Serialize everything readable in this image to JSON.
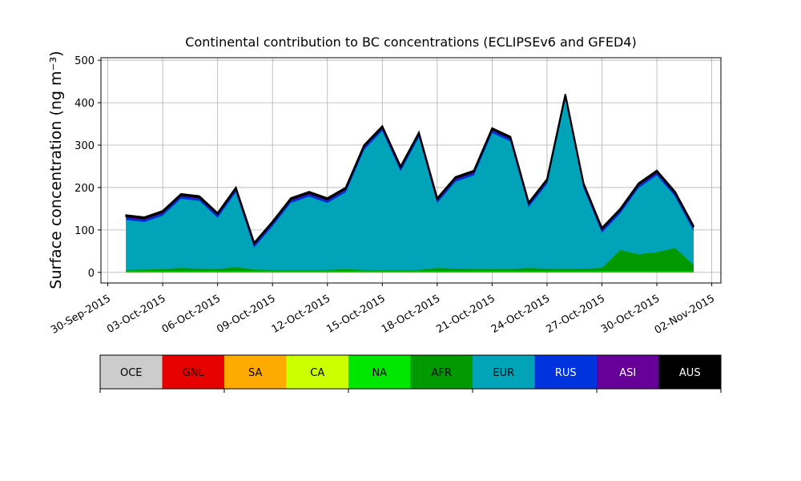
{
  "chart_data": {
    "type": "stacked-area",
    "title": "Continental contribution to BC concentrations (ECLIPSEv6 and GFED4)",
    "y_label": "Surface concentration (ng m⁻³)",
    "x": [
      "2015-10-01",
      "2015-10-02",
      "2015-10-03",
      "2015-10-04",
      "2015-10-05",
      "2015-10-06",
      "2015-10-07",
      "2015-10-08",
      "2015-10-09",
      "2015-10-10",
      "2015-10-11",
      "2015-10-12",
      "2015-10-13",
      "2015-10-14",
      "2015-10-15",
      "2015-10-16",
      "2015-10-17",
      "2015-10-18",
      "2015-10-19",
      "2015-10-20",
      "2015-10-21",
      "2015-10-22",
      "2015-10-23",
      "2015-10-24",
      "2015-10-25",
      "2015-10-26",
      "2015-10-27",
      "2015-10-28",
      "2015-10-29",
      "2015-10-30",
      "2015-10-31",
      "2015-11-01"
    ],
    "series": [
      {
        "name": "OCE",
        "color": "#cccccc",
        "values": [
          0,
          0,
          0,
          0,
          0,
          0,
          0,
          0,
          0,
          0,
          0,
          0,
          0,
          0,
          0,
          0,
          0,
          0,
          0,
          0,
          0,
          0,
          0,
          0,
          0,
          0,
          0,
          0,
          0,
          0,
          0,
          0
        ]
      },
      {
        "name": "GNL",
        "color": "#e60000",
        "values": [
          0,
          0,
          0,
          0,
          0,
          0,
          0,
          0,
          0,
          0,
          0,
          0,
          0,
          0,
          0,
          0,
          0,
          0,
          0,
          0,
          0,
          0,
          0,
          0,
          0,
          0,
          0,
          0,
          0,
          0,
          0,
          0
        ]
      },
      {
        "name": "SA",
        "color": "#ffaa00",
        "values": [
          0,
          0,
          0,
          0,
          0,
          0,
          0,
          0,
          0,
          0,
          0,
          0,
          0,
          0,
          0,
          0,
          0,
          0,
          0,
          0,
          0,
          0,
          0,
          0,
          0,
          0,
          0,
          0,
          0,
          0,
          0,
          0
        ]
      },
      {
        "name": "CA",
        "color": "#ccff00",
        "values": [
          0,
          0,
          0,
          0,
          0,
          0,
          0,
          0,
          0,
          0,
          0,
          0,
          0,
          0,
          0,
          0,
          0,
          0,
          0,
          0,
          0,
          0,
          0,
          0,
          0,
          0,
          0,
          0,
          0,
          0,
          0,
          0
        ]
      },
      {
        "name": "NA",
        "color": "#00e600",
        "values": [
          3,
          3,
          3,
          3,
          3,
          3,
          3,
          3,
          3,
          3,
          3,
          3,
          3,
          3,
          3,
          3,
          3,
          3,
          3,
          3,
          3,
          3,
          3,
          3,
          3,
          3,
          3,
          3,
          3,
          3,
          3,
          3
        ]
      },
      {
        "name": "AFR",
        "color": "#009900",
        "values": [
          3,
          4,
          5,
          8,
          6,
          5,
          10,
          4,
          3,
          3,
          3,
          3,
          5,
          3,
          3,
          3,
          3,
          8,
          6,
          5,
          5,
          5,
          8,
          6,
          5,
          6,
          8,
          50,
          40,
          45,
          55,
          15
        ]
      },
      {
        "name": "EUR",
        "color": "#00a3b8",
        "values": [
          118,
          112,
          126,
          163,
          160,
          121,
          176,
          52,
          103,
          158,
          173,
          158,
          181,
          283,
          328,
          233,
          313,
          153,
          205,
          221,
          321,
          301,
          143,
          200,
          401,
          190,
          83,
          86,
          156,
          181,
          121,
          81
        ]
      },
      {
        "name": "RUS",
        "color": "#0033dd",
        "values": [
          5,
          5,
          5,
          5,
          5,
          5,
          5,
          5,
          5,
          5,
          5,
          5,
          5,
          5,
          5,
          5,
          5,
          5,
          5,
          5,
          5,
          5,
          5,
          5,
          5,
          5,
          5,
          5,
          5,
          5,
          5,
          5
        ]
      },
      {
        "name": "ASI",
        "color": "#660099",
        "values": [
          3,
          3,
          3,
          3,
          3,
          3,
          3,
          3,
          3,
          3,
          3,
          3,
          3,
          3,
          3,
          3,
          3,
          3,
          3,
          3,
          3,
          3,
          3,
          3,
          3,
          3,
          3,
          3,
          3,
          3,
          3,
          3
        ]
      },
      {
        "name": "AUS",
        "color": "#000000",
        "values": [
          3,
          3,
          3,
          3,
          3,
          3,
          3,
          3,
          3,
          3,
          3,
          3,
          3,
          3,
          3,
          3,
          3,
          3,
          3,
          3,
          3,
          3,
          3,
          3,
          3,
          3,
          3,
          3,
          3,
          3,
          3,
          3
        ]
      }
    ],
    "xlim": [
      "2015-09-29T15:00:00Z",
      "2015-11-02T12:00:00Z"
    ],
    "xticks": [
      {
        "value": "2015-09-30",
        "label": "30-Sep-2015"
      },
      {
        "value": "2015-10-03",
        "label": "03-Oct-2015"
      },
      {
        "value": "2015-10-06",
        "label": "06-Oct-2015"
      },
      {
        "value": "2015-10-09",
        "label": "09-Oct-2015"
      },
      {
        "value": "2015-10-12",
        "label": "12-Oct-2015"
      },
      {
        "value": "2015-10-15",
        "label": "15-Oct-2015"
      },
      {
        "value": "2015-10-18",
        "label": "18-Oct-2015"
      },
      {
        "value": "2015-10-21",
        "label": "21-Oct-2015"
      },
      {
        "value": "2015-10-24",
        "label": "24-Oct-2015"
      },
      {
        "value": "2015-10-27",
        "label": "27-Oct-2015"
      },
      {
        "value": "2015-10-30",
        "label": "30-Oct-2015"
      },
      {
        "value": "2015-11-02",
        "label": "02-Nov-2015"
      }
    ],
    "ylim": [
      -25,
      506
    ],
    "yticks": [
      0,
      100,
      200,
      300,
      400,
      500
    ],
    "grid": true
  }
}
